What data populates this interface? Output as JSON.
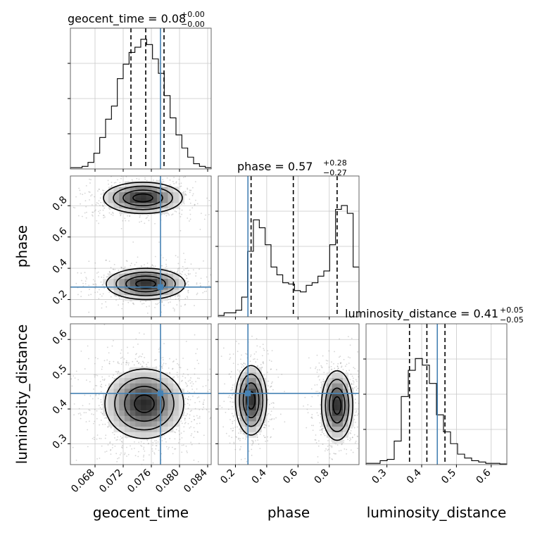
{
  "chart_data": {
    "type": "corner",
    "parameters": [
      {
        "name": "geocent_time",
        "xlabel": "geocent_time",
        "range": [
          0.0645,
          0.0845
        ],
        "ticks": [
          "0.068",
          "0.072",
          "0.076",
          "0.080",
          "0.084"
        ],
        "tick_values": [
          0.068,
          0.072,
          0.076,
          0.08,
          0.084
        ],
        "title_prefix": "geocent_time = 0.08",
        "title_sup": "+0.00",
        "title_sub": "−0.00",
        "quantiles": [
          0.0731,
          0.0752,
          0.0778
        ],
        "truth": 0.0773,
        "hist": [
          0.01,
          0.01,
          0.02,
          0.05,
          0.12,
          0.24,
          0.38,
          0.48,
          0.69,
          0.8,
          0.89,
          0.93,
          0.99,
          0.95,
          0.84,
          0.73,
          0.56,
          0.39,
          0.26,
          0.16,
          0.09,
          0.04,
          0.02,
          0.01
        ]
      },
      {
        "name": "phase",
        "xlabel": "phase",
        "ylabel": "phase",
        "range": [
          0.09,
          0.99
        ],
        "ticks": [
          "0.2",
          "0.4",
          "0.6",
          "0.8"
        ],
        "tick_values": [
          0.2,
          0.4,
          0.6,
          0.8
        ],
        "title_prefix": "phase = 0.57",
        "title_sup": "+0.28",
        "title_sub": "−0.27",
        "quantiles": [
          0.3,
          0.57,
          0.85
        ],
        "truth": 0.28,
        "hist": [
          0.01,
          0.03,
          0.03,
          0.05,
          0.15,
          0.5,
          0.74,
          0.68,
          0.55,
          0.38,
          0.32,
          0.26,
          0.25,
          0.2,
          0.19,
          0.24,
          0.26,
          0.31,
          0.35,
          0.55,
          0.82,
          0.85,
          0.79,
          0.38
        ]
      },
      {
        "name": "luminosity_distance",
        "xlabel": "luminosity_distance",
        "ylabel": "luminosity_distance",
        "range": [
          0.24,
          0.645
        ],
        "ticks": [
          "0.3",
          "0.4",
          "0.5",
          "0.6"
        ],
        "tick_values": [
          0.3,
          0.4,
          0.5,
          0.6
        ],
        "title_prefix": "luminosity_distance = 0.41",
        "title_sup": "+0.05",
        "title_sub": "−0.05",
        "quantiles": [
          0.365,
          0.415,
          0.467
        ],
        "truth": 0.445,
        "hist": [
          0.01,
          0.01,
          0.03,
          0.04,
          0.18,
          0.52,
          0.72,
          0.81,
          0.76,
          0.62,
          0.38,
          0.25,
          0.16,
          0.08,
          0.05,
          0.03,
          0.02,
          0.01,
          0.01,
          0.005
        ]
      }
    ],
    "truth_color": "#4682b4",
    "quantile_style": "dashed",
    "grid": true
  }
}
